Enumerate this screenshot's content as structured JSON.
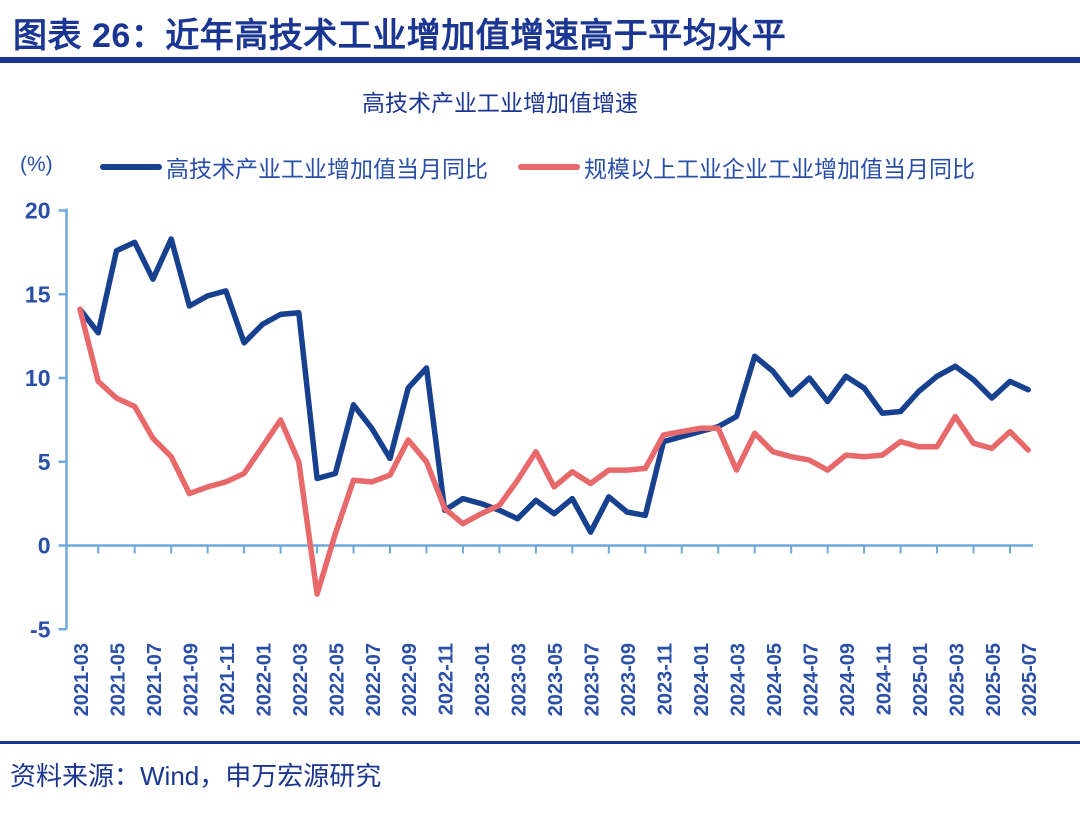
{
  "header": {
    "title": "图表 26：近年高技术工业增加值增速高于平均水平"
  },
  "footer": {
    "source": "资料来源：Wind，申万宏源研究"
  },
  "colors": {
    "navy": "#1b3692",
    "text_blue": "#2a4fa8",
    "line_blue": "#17408f",
    "line_red": "#e8696b",
    "axis_blue": "#6fa8dc"
  },
  "chart_data": {
    "type": "line",
    "title": "高技术产业工业增加值增速",
    "unit": "(%)",
    "ylabel": "(%)",
    "ylim": [
      -5,
      20
    ],
    "yticks": [
      20,
      15,
      10,
      5,
      0,
      -5
    ],
    "grid": false,
    "legend_position": "top",
    "xtick_every": 2,
    "x": [
      "2021-03",
      "2021-04",
      "2021-05",
      "2021-06",
      "2021-07",
      "2021-08",
      "2021-09",
      "2021-10",
      "2021-11",
      "2021-12",
      "2022-01",
      "2022-02",
      "2022-03",
      "2022-04",
      "2022-05",
      "2022-06",
      "2022-07",
      "2022-08",
      "2022-09",
      "2022-10",
      "2022-11",
      "2022-12",
      "2023-01",
      "2023-02",
      "2023-03",
      "2023-04",
      "2023-05",
      "2023-06",
      "2023-07",
      "2023-08",
      "2023-09",
      "2023-10",
      "2023-11",
      "2023-12",
      "2024-01",
      "2024-02",
      "2024-03",
      "2024-04",
      "2024-05",
      "2024-06",
      "2024-07",
      "2024-08",
      "2024-09",
      "2024-10",
      "2024-11",
      "2024-12",
      "2025-01",
      "2025-02",
      "2025-03",
      "2025-04",
      "2025-05",
      "2025-06",
      "2025-07"
    ],
    "series": [
      {
        "name": "高技术产业工业增加值当月同比",
        "color": "#17408f",
        "values": [
          14.1,
          12.7,
          17.6,
          18.1,
          15.9,
          18.3,
          14.3,
          14.9,
          15.2,
          12.1,
          13.2,
          13.8,
          13.9,
          4.0,
          4.3,
          8.4,
          7.0,
          5.2,
          9.4,
          10.6,
          2.1,
          2.8,
          2.5,
          2.1,
          1.6,
          2.7,
          1.9,
          2.8,
          0.8,
          2.9,
          2.0,
          1.8,
          6.2,
          6.5,
          6.8,
          7.1,
          7.7,
          11.3,
          10.4,
          9.0,
          10.0,
          8.6,
          10.1,
          9.4,
          7.9,
          8.0,
          9.2,
          10.1,
          10.7,
          9.9,
          8.8,
          9.8,
          9.3
        ]
      },
      {
        "name": "规模以上工业企业工业增加值当月同比",
        "color": "#e8696b",
        "values": [
          14.1,
          9.8,
          8.8,
          8.3,
          6.4,
          5.3,
          3.1,
          3.5,
          3.8,
          4.3,
          5.9,
          7.5,
          5.0,
          -2.9,
          0.7,
          3.9,
          3.8,
          4.2,
          6.3,
          5.0,
          2.2,
          1.3,
          1.9,
          2.4,
          3.9,
          5.6,
          3.5,
          4.4,
          3.7,
          4.5,
          4.5,
          4.6,
          6.6,
          6.8,
          7.0,
          7.0,
          4.5,
          6.7,
          5.6,
          5.3,
          5.1,
          4.5,
          5.4,
          5.3,
          5.4,
          6.2,
          5.9,
          5.9,
          7.7,
          6.1,
          5.8,
          6.8,
          5.7
        ]
      }
    ]
  }
}
